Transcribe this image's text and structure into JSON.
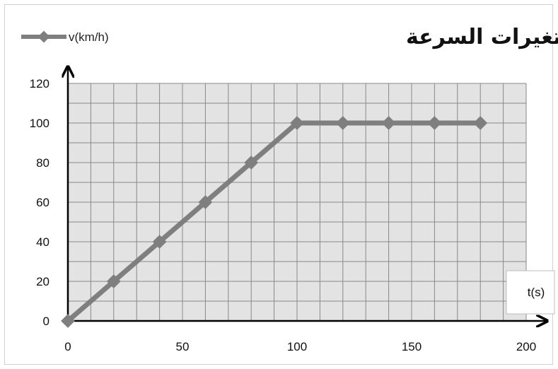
{
  "chart_data": {
    "type": "line",
    "title": "مخطط تغيرات السرعة",
    "xlabel": "t(s)",
    "ylabel": "",
    "xlim": [
      0,
      200
    ],
    "ylim": [
      0,
      120
    ],
    "x_ticks": [
      0,
      50,
      100,
      150,
      200
    ],
    "y_ticks": [
      0,
      20,
      40,
      60,
      80,
      100,
      120
    ],
    "grid": true,
    "legend_position": "top-left",
    "series": [
      {
        "name": "v(km/h)",
        "color": "#7f7f7f",
        "x": [
          0,
          20,
          40,
          60,
          80,
          100,
          120,
          140,
          160,
          180
        ],
        "y": [
          0,
          20,
          40,
          60,
          80,
          100,
          100,
          100,
          100,
          100
        ]
      }
    ]
  }
}
